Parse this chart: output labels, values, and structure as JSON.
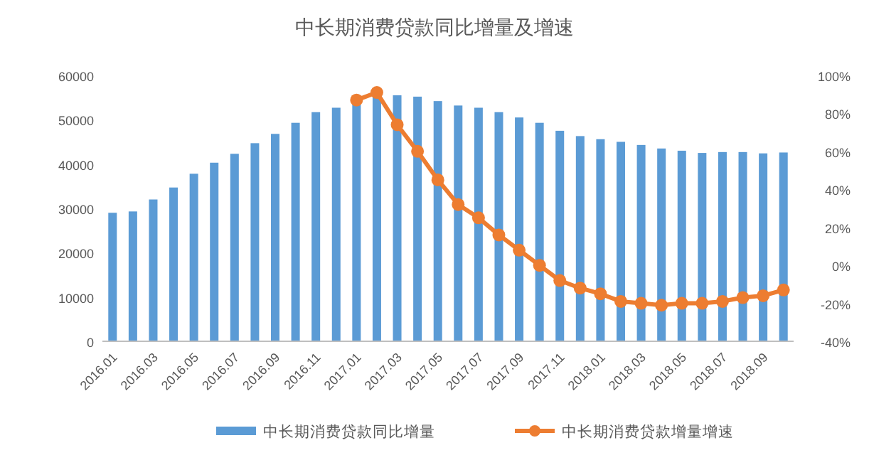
{
  "chart_data": {
    "type": "bar",
    "title": "中长期消费贷款同比增量及增速",
    "categories": [
      "2016.01",
      null,
      "2016.03",
      null,
      "2016.05",
      null,
      "2016.07",
      null,
      "2016.09",
      null,
      "2016.11",
      null,
      "2017.01",
      null,
      "2017.03",
      null,
      "2017.05",
      null,
      "2017.07",
      null,
      "2017.09",
      null,
      "2017.11",
      null,
      "2018.01",
      null,
      "2018.03",
      null,
      "2018.05",
      null,
      "2018.07",
      null,
      "2018.09",
      null
    ],
    "series": [
      {
        "name": "中长期消费贷款同比增量",
        "color": "#5b9bd5",
        "values": [
          29000,
          29300,
          32000,
          34700,
          37800,
          40300,
          42300,
          44700,
          46800,
          49300,
          51700,
          52700,
          54000,
          56000,
          55500,
          55200,
          54200,
          53200,
          52700,
          51700,
          50500,
          49300,
          47500,
          46300,
          45600,
          45000,
          44300,
          43500,
          43000,
          42500,
          42700,
          42700,
          42400,
          42600
        ]
      },
      {
        "name": "中长期消费贷款增量增速",
        "type": "line",
        "axis": "y2",
        "color": "#ed7d31",
        "marker": "circle",
        "values": [
          null,
          null,
          null,
          null,
          null,
          null,
          null,
          null,
          null,
          null,
          null,
          null,
          87,
          91,
          74,
          60,
          45,
          32,
          25,
          16,
          8,
          0,
          -8,
          -12,
          -15,
          -19,
          -20,
          -21,
          -20,
          -20,
          -19,
          -17,
          -16,
          -13
        ]
      }
    ],
    "ylim": [
      0,
      60000
    ],
    "yticks": [
      0,
      10000,
      20000,
      30000,
      40000,
      50000,
      60000
    ],
    "y2lim": [
      -40,
      100
    ],
    "y2ticks": [
      {
        "value": -40,
        "label": "-40%"
      },
      {
        "value": -20,
        "label": "-20%"
      },
      {
        "value": 0,
        "label": "0%"
      },
      {
        "value": 20,
        "label": "20%"
      },
      {
        "value": 40,
        "label": "40%"
      },
      {
        "value": 60,
        "label": "60%"
      },
      {
        "value": 80,
        "label": "80%"
      },
      {
        "value": 100,
        "label": "100%"
      }
    ],
    "grid": false,
    "legend": "bottom"
  }
}
